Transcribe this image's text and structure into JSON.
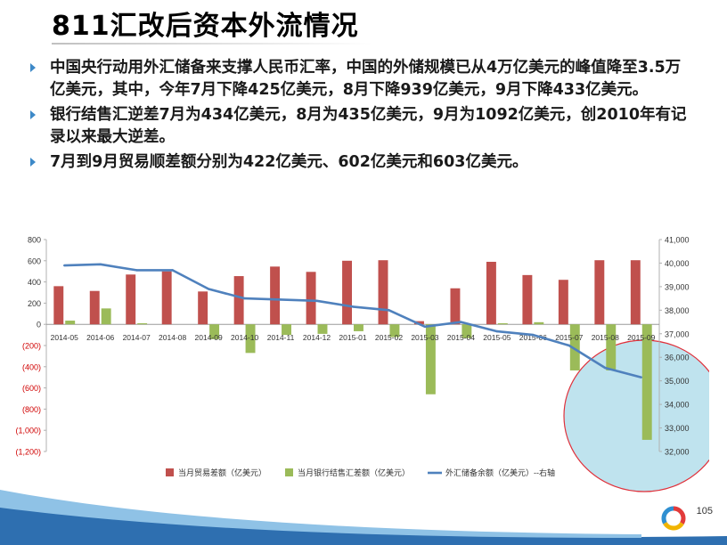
{
  "slide": {
    "title": "811汇改后资本外流情况",
    "page_number": "105",
    "bullets": [
      "中国央行动用外汇储备来支撑人民币汇率，中国的外储规模已从4万亿美元的峰值降至3.5万亿美元，其中，今年7月下降425亿美元，8月下降939亿美元，9月下降433亿美元。",
      "银行结售汇逆差7月为434亿美元，8月为435亿美元，9月为1092亿美元，创2010年有记录以来最大逆差。",
      "7月到9月贸易顺差额分别为422亿美元、602亿美元和603亿美元。"
    ]
  },
  "colors": {
    "trade_bar": "#c0504d",
    "settlement_bar": "#9bbb59",
    "reserves_line": "#4f81bd",
    "negative_tick": "#d00000",
    "highlight_fill": "#bfe3ee",
    "highlight_stroke": "#e0303a",
    "bullet_marker": "#3d89c8"
  },
  "chart_data": {
    "type": "bar",
    "categories": [
      "2014-05",
      "2014-06",
      "2014-07",
      "2014-08",
      "2014-09",
      "2014-10",
      "2014-11",
      "2014-12",
      "2015-01",
      "2015-02",
      "2015-03",
      "2015-04",
      "2015-05",
      "2015-06",
      "2015-07",
      "2015-08",
      "2015-09"
    ],
    "left_axis": {
      "ylim": [
        -1200,
        800
      ],
      "ticks": [
        800,
        600,
        400,
        200,
        0,
        -200,
        -400,
        -600,
        -800,
        -1000,
        -1200
      ],
      "tick_labels": [
        "800",
        "600",
        "400",
        "200",
        "0",
        "(200)",
        "(400)",
        "(600)",
        "(800)",
        "(1,000)",
        "(1,200)"
      ]
    },
    "right_axis": {
      "ylim": [
        32000,
        41000
      ],
      "ticks": [
        41000,
        40000,
        39000,
        38000,
        37000,
        36000,
        35000,
        34000,
        33000,
        32000
      ],
      "tick_labels": [
        "41,000",
        "40,000",
        "39,000",
        "38,000",
        "37,000",
        "36,000",
        "35,000",
        "34,000",
        "33,000",
        "32,000"
      ]
    },
    "grid": false,
    "legend_position": "bottom",
    "series": [
      {
        "name": "当月贸易差额（亿美元）",
        "type": "bar",
        "axis": "left",
        "values": [
          360,
          315,
          470,
          500,
          310,
          455,
          545,
          495,
          600,
          605,
          30,
          340,
          590,
          465,
          420,
          605,
          605
        ]
      },
      {
        "name": "当月银行结售汇差额（亿美元）",
        "type": "bar",
        "axis": "left",
        "values": [
          35,
          150,
          10,
          0,
          -140,
          -270,
          -100,
          -90,
          -65,
          -120,
          -660,
          -130,
          10,
          20,
          -435,
          -435,
          -1090
        ]
      },
      {
        "name": "外汇储备余额（亿美元）--右轴",
        "type": "line",
        "axis": "right",
        "values": [
          39900,
          39950,
          39700,
          39700,
          38900,
          38500,
          38450,
          38400,
          38150,
          38000,
          37300,
          37500,
          37100,
          36950,
          36500,
          35550,
          35150
        ]
      }
    ]
  }
}
